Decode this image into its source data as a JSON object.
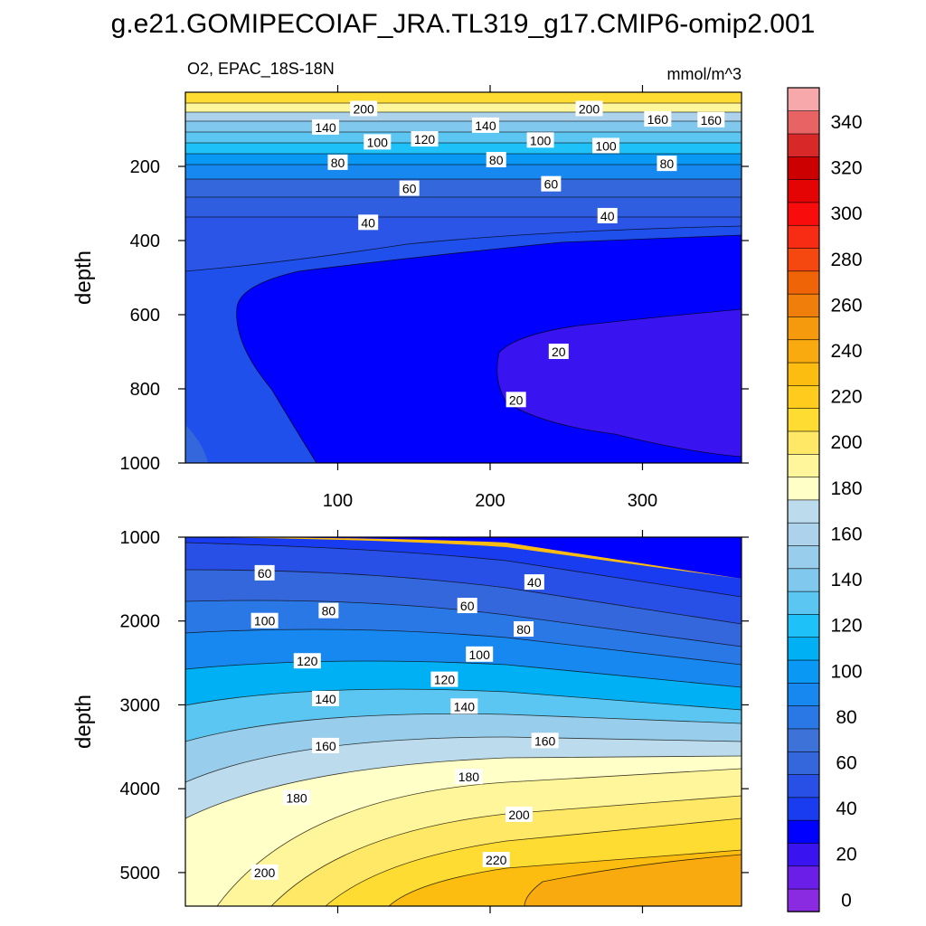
{
  "title": "g.e21.GOMIPECOIAF_JRA.TL319_g17.CMIP6-omip2.001",
  "chart_data": {
    "type": "heatmap",
    "variable_label": "O2, EPAC_18S-18N",
    "units": "mmol/m^3",
    "x": {
      "range": [
        0,
        365
      ],
      "ticks": [
        100,
        200,
        300
      ],
      "tick_labels": [
        "100",
        "200",
        "300"
      ]
    },
    "panels": [
      {
        "name": "upper",
        "ylabel": "depth",
        "ylim": [
          0,
          1000
        ],
        "y_inverted": true,
        "y_ticks": [
          200,
          400,
          600,
          800,
          1000
        ],
        "y_tick_labels": [
          "200",
          "400",
          "600",
          "800",
          "1000"
        ],
        "contour_labels": [
          {
            "x": 117,
            "y": 45,
            "text": "200"
          },
          {
            "x": 265,
            "y": 45,
            "text": "200"
          },
          {
            "x": 92,
            "y": 95,
            "text": "140"
          },
          {
            "x": 197,
            "y": 90,
            "text": "140"
          },
          {
            "x": 310,
            "y": 73,
            "text": "160"
          },
          {
            "x": 345,
            "y": 75,
            "text": "160"
          },
          {
            "x": 126,
            "y": 135,
            "text": "100"
          },
          {
            "x": 157,
            "y": 127,
            "text": "120"
          },
          {
            "x": 233,
            "y": 130,
            "text": "100"
          },
          {
            "x": 276,
            "y": 145,
            "text": "100"
          },
          {
            "x": 100,
            "y": 190,
            "text": "80"
          },
          {
            "x": 204,
            "y": 183,
            "text": "80"
          },
          {
            "x": 316,
            "y": 193,
            "text": "80"
          },
          {
            "x": 147,
            "y": 260,
            "text": "60"
          },
          {
            "x": 240,
            "y": 248,
            "text": "60"
          },
          {
            "x": 120,
            "y": 352,
            "text": "40"
          },
          {
            "x": 277,
            "y": 334,
            "text": "40"
          },
          {
            "x": 245,
            "y": 700,
            "text": "20"
          },
          {
            "x": 217,
            "y": 830,
            "text": "20"
          }
        ]
      },
      {
        "name": "lower",
        "ylabel": "depth",
        "ylim": [
          1000,
          5400
        ],
        "y_inverted": true,
        "y_ticks": [
          1000,
          2000,
          3000,
          4000,
          5000
        ],
        "y_tick_labels": [
          "1000",
          "2000",
          "3000",
          "4000",
          "5000"
        ],
        "contour_labels": [
          {
            "x": 52,
            "y": 1430,
            "text": "60"
          },
          {
            "x": 229,
            "y": 1540,
            "text": "40"
          },
          {
            "x": 94,
            "y": 1880,
            "text": "80"
          },
          {
            "x": 185,
            "y": 1820,
            "text": "60"
          },
          {
            "x": 52,
            "y": 2000,
            "text": "100"
          },
          {
            "x": 222,
            "y": 2100,
            "text": "80"
          },
          {
            "x": 80,
            "y": 2480,
            "text": "120"
          },
          {
            "x": 193,
            "y": 2400,
            "text": "100"
          },
          {
            "x": 170,
            "y": 2700,
            "text": "120"
          },
          {
            "x": 92,
            "y": 2930,
            "text": "140"
          },
          {
            "x": 183,
            "y": 3020,
            "text": "140"
          },
          {
            "x": 92,
            "y": 3490,
            "text": "160"
          },
          {
            "x": 236,
            "y": 3430,
            "text": "160"
          },
          {
            "x": 186,
            "y": 3860,
            "text": "180"
          },
          {
            "x": 73,
            "y": 4110,
            "text": "180"
          },
          {
            "x": 219,
            "y": 4310,
            "text": "200"
          },
          {
            "x": 52,
            "y": 5000,
            "text": "200"
          },
          {
            "x": 204,
            "y": 4850,
            "text": "220"
          }
        ]
      }
    ],
    "colorbar": {
      "levels": [
        0,
        10,
        20,
        30,
        40,
        50,
        60,
        70,
        80,
        90,
        100,
        110,
        120,
        130,
        140,
        150,
        160,
        170,
        180,
        190,
        200,
        210,
        220,
        230,
        240,
        250,
        260,
        270,
        280,
        290,
        300,
        310,
        320,
        330,
        340,
        350
      ],
      "labels": [
        "0",
        "20",
        "40",
        "60",
        "80",
        "100",
        "120",
        "140",
        "160",
        "180",
        "200",
        "220",
        "240",
        "260",
        "280",
        "300",
        "320",
        "340"
      ],
      "label_values": [
        0,
        20,
        40,
        60,
        80,
        100,
        120,
        140,
        160,
        180,
        200,
        220,
        240,
        260,
        280,
        300,
        320,
        340
      ],
      "colors": [
        "#8a2be2",
        "#6a1ee8",
        "#3a14f0",
        "#0000ff",
        "#1a3cf0",
        "#2850e6",
        "#3466dc",
        "#3d72d8",
        "#2a78e6",
        "#1688f0",
        "#0a98f5",
        "#00b0f5",
        "#1ec2f8",
        "#5cc6f2",
        "#80c8ee",
        "#99cdec",
        "#acd2ec",
        "#bcdcee",
        "#ffffc8",
        "#fff59a",
        "#ffe866",
        "#ffdc32",
        "#ffcc1e",
        "#fcbc10",
        "#f8aa0e",
        "#f49a0c",
        "#f07e0a",
        "#f06408",
        "#f44810",
        "#f82c14",
        "#f80c0c",
        "#e40404",
        "#cc0000",
        "#d82828",
        "#e86464",
        "#f6a8aa"
      ]
    }
  }
}
